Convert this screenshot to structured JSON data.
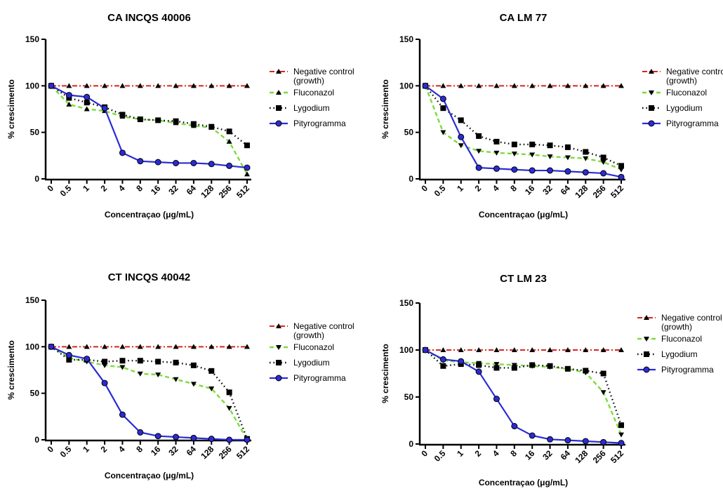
{
  "colors": {
    "Negative control": "#d9261c",
    "Fluconazol": "#7ddb3a",
    "Lygodium": "#000000",
    "Pityrogramma": "#2b2bd6"
  },
  "chart_data": [
    {
      "type": "line",
      "title": "CA INCQS 40006",
      "xlabel": "Concentraçao (μg/mL)",
      "ylabel": "% crescimento",
      "ylim": [
        0,
        150
      ],
      "yticks": [
        "0",
        "50",
        "100",
        "150"
      ],
      "categories": [
        "0",
        "0.5",
        "1",
        "2",
        "4",
        "8",
        "16",
        "32",
        "64",
        "128",
        "256",
        "512"
      ],
      "legend_position": "right",
      "series": [
        {
          "name": "Negative control (growth)",
          "legend_lines": [
            "Negative control",
            "(growth)"
          ],
          "key": "Negative control",
          "marker": "triangle-up",
          "line": "dashdot",
          "values": [
            100,
            100,
            100,
            100,
            100,
            100,
            100,
            100,
            100,
            100,
            100,
            100
          ]
        },
        {
          "name": "Fluconazol",
          "legend_lines": [
            "Fluconazol"
          ],
          "key": "Fluconazol",
          "marker": "triangle-up",
          "line": "dashed",
          "values": [
            100,
            80,
            75,
            73,
            67,
            64,
            63,
            60,
            57,
            55,
            40,
            5
          ]
        },
        {
          "name": "Lygodium",
          "legend_lines": [
            "Lygodium"
          ],
          "key": "Lygodium",
          "marker": "square",
          "line": "dotted",
          "values": [
            100,
            87,
            82,
            77,
            69,
            64,
            63,
            62,
            59,
            56,
            51,
            36
          ]
        },
        {
          "name": "Pityrogramma",
          "legend_lines": [
            "Pityrogramma"
          ],
          "key": "Pityrogramma",
          "marker": "circle",
          "line": "solid",
          "values": [
            100,
            90,
            88,
            76,
            28,
            19,
            18,
            17,
            17,
            16,
            14,
            12
          ]
        }
      ]
    },
    {
      "type": "line",
      "title": "CA LM 77",
      "xlabel": "Concentraçao (μg/mL)",
      "ylabel": "% crescimento",
      "ylim": [
        0,
        150
      ],
      "yticks": [
        "0",
        "50",
        "100",
        "150"
      ],
      "categories": [
        "0",
        "0.5",
        "1",
        "2",
        "4",
        "8",
        "16",
        "32",
        "64",
        "128",
        "256",
        "512"
      ],
      "legend_position": "right",
      "series": [
        {
          "name": "Negative control (growth)",
          "legend_lines": [
            "Negative contro",
            "(growth)"
          ],
          "key": "Negative control",
          "marker": "triangle-up",
          "line": "dashdot",
          "values": [
            100,
            100,
            100,
            100,
            100,
            100,
            100,
            100,
            100,
            100,
            100,
            100
          ]
        },
        {
          "name": "Fluconazol",
          "legend_lines": [
            "Fluconazol"
          ],
          "key": "Fluconazol",
          "marker": "triangle-down",
          "line": "dashed",
          "values": [
            100,
            50,
            36,
            30,
            28,
            27,
            26,
            24,
            23,
            22,
            18,
            10
          ]
        },
        {
          "name": "Lygodium",
          "legend_lines": [
            "Lygodium"
          ],
          "key": "Lygodium",
          "marker": "square",
          "line": "dotted",
          "values": [
            100,
            76,
            63,
            46,
            40,
            37,
            37,
            36,
            34,
            29,
            23,
            14
          ]
        },
        {
          "name": "Pityrogramma",
          "legend_lines": [
            "Pityrogramma"
          ],
          "key": "Pityrogramma",
          "marker": "circle",
          "line": "solid",
          "values": [
            100,
            86,
            45,
            12,
            11,
            10,
            9,
            9,
            8,
            7,
            6,
            2
          ]
        }
      ]
    },
    {
      "type": "line",
      "title": "CT INCQS 40042",
      "xlabel": "Concentraçao (μg/mL)",
      "ylabel": "% crescimento",
      "ylim": [
        0,
        150
      ],
      "yticks": [
        "0",
        "50",
        "100",
        "150"
      ],
      "categories": [
        "0",
        "0.5",
        "1",
        "2",
        "4",
        "8",
        "16",
        "32",
        "64",
        "128",
        "256",
        "512"
      ],
      "legend_position": "right",
      "series": [
        {
          "name": "Negative control (growth)",
          "legend_lines": [
            "Negative control",
            "(growth)"
          ],
          "key": "Negative control",
          "marker": "triangle-up",
          "line": "dashdot",
          "values": [
            100,
            100,
            100,
            100,
            100,
            100,
            100,
            100,
            100,
            100,
            100,
            100
          ]
        },
        {
          "name": "Fluconazol",
          "legend_lines": [
            "Fluconazol"
          ],
          "key": "Fluconazol",
          "marker": "triangle-down",
          "line": "dashed",
          "values": [
            100,
            88,
            84,
            80,
            78,
            71,
            70,
            65,
            60,
            55,
            34,
            0
          ]
        },
        {
          "name": "Lygodium",
          "legend_lines": [
            "Lygodium"
          ],
          "key": "Lygodium",
          "marker": "square",
          "line": "dotted",
          "values": [
            100,
            86,
            86,
            84,
            85,
            85,
            84,
            83,
            80,
            74,
            51,
            1
          ]
        },
        {
          "name": "Pityrogramma",
          "legend_lines": [
            "Pityrogramma"
          ],
          "key": "Pityrogramma",
          "marker": "circle",
          "line": "solid",
          "values": [
            100,
            91,
            87,
            61,
            27,
            8,
            4,
            3,
            2,
            1,
            0,
            0
          ]
        }
      ]
    },
    {
      "type": "line",
      "title": "CT LM 23",
      "xlabel": "Concentraçao (μg/mL)",
      "ylabel": "% crescimento",
      "ylim": [
        0,
        150
      ],
      "yticks": [
        "0",
        "50",
        "100",
        "150"
      ],
      "categories": [
        "0",
        "0.5",
        "1",
        "2",
        "4",
        "8",
        "16",
        "32",
        "64",
        "128",
        "256",
        "512"
      ],
      "legend_position": "right",
      "series": [
        {
          "name": "Negative control (growth)",
          "legend_lines": [
            "Negative control",
            "(growth)"
          ],
          "key": "Negative control",
          "marker": "triangle-up",
          "line": "dashdot",
          "values": [
            100,
            100,
            100,
            100,
            100,
            100,
            100,
            100,
            100,
            100,
            100,
            100
          ]
        },
        {
          "name": "Fluconazol",
          "legend_lines": [
            "Fluconazol"
          ],
          "key": "Fluconazol",
          "marker": "triangle-down",
          "line": "dashed",
          "values": [
            100,
            89,
            87,
            86,
            85,
            84,
            83,
            82,
            80,
            76,
            55,
            10
          ]
        },
        {
          "name": "Lygodium",
          "legend_lines": [
            "Lygodium"
          ],
          "key": "Lygodium",
          "marker": "square",
          "line": "dotted",
          "values": [
            100,
            83,
            85,
            84,
            81,
            81,
            84,
            83,
            80,
            78,
            75,
            20
          ]
        },
        {
          "name": "Pityrogramma",
          "legend_lines": [
            "Pityrogramma"
          ],
          "key": "Pityrogramma",
          "marker": "circle",
          "line": "solid",
          "values": [
            100,
            90,
            88,
            77,
            48,
            19,
            9,
            5,
            4,
            3,
            2,
            1
          ]
        }
      ]
    }
  ]
}
